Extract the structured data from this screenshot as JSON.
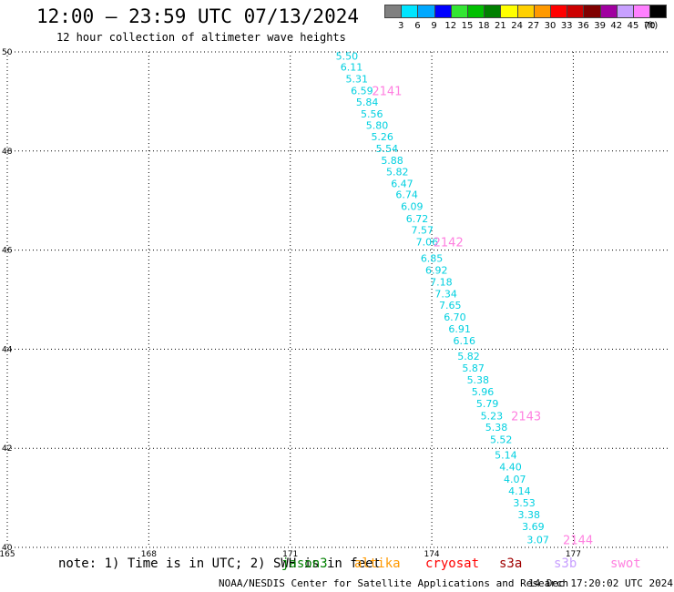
{
  "header": {
    "title": "12:00 – 23:59 UTC 07/13/2024",
    "subtitle": "12 hour collection of altimeter wave heights"
  },
  "colorbar": {
    "unit": "(ft)",
    "bins": [
      {
        "label": "3",
        "color": "#808080"
      },
      {
        "label": "6",
        "color": "#00e5ff"
      },
      {
        "label": "9",
        "color": "#00a8ff"
      },
      {
        "label": "12",
        "color": "#0000ff"
      },
      {
        "label": "15",
        "color": "#33e633"
      },
      {
        "label": "18",
        "color": "#00c000"
      },
      {
        "label": "21",
        "color": "#008000"
      },
      {
        "label": "24",
        "color": "#ffff00"
      },
      {
        "label": "27",
        "color": "#ffd000"
      },
      {
        "label": "30",
        "color": "#ff9900"
      },
      {
        "label": "33",
        "color": "#ff0000"
      },
      {
        "label": "36",
        "color": "#cc0000"
      },
      {
        "label": "39",
        "color": "#800000"
      },
      {
        "label": "42",
        "color": "#a000a0"
      },
      {
        "label": "45",
        "color": "#c8a0ff"
      },
      {
        "label": "70",
        "color": "#ff80ff"
      },
      {
        "label": "",
        "color": "#000000"
      }
    ]
  },
  "chart_data": {
    "type": "scatter",
    "xlim": [
      165,
      179
    ],
    "ylim": [
      40,
      50
    ],
    "x_ticks": [
      165,
      168,
      171,
      174,
      177
    ],
    "y_ticks": [
      40,
      42,
      44,
      46,
      48,
      50
    ],
    "grid": true,
    "point_color": "#00d0e0",
    "orbit_label_color": "#ff80e0",
    "points": [
      {
        "x": 172.2,
        "y": 49.92,
        "label": "5.50"
      },
      {
        "x": 172.3,
        "y": 49.7,
        "label": "6.11"
      },
      {
        "x": 172.41,
        "y": 49.46,
        "label": "5.31"
      },
      {
        "x": 172.52,
        "y": 49.22,
        "label": "6.59"
      },
      {
        "x": 172.63,
        "y": 48.99,
        "label": "5.84"
      },
      {
        "x": 172.73,
        "y": 48.75,
        "label": "5.56"
      },
      {
        "x": 172.84,
        "y": 48.52,
        "label": "5.80"
      },
      {
        "x": 172.95,
        "y": 48.29,
        "label": "5.26"
      },
      {
        "x": 173.05,
        "y": 48.05,
        "label": "5.54"
      },
      {
        "x": 173.16,
        "y": 47.81,
        "label": "5.88"
      },
      {
        "x": 173.27,
        "y": 47.58,
        "label": "5.82"
      },
      {
        "x": 173.37,
        "y": 47.34,
        "label": "6.47"
      },
      {
        "x": 173.47,
        "y": 47.12,
        "label": "6.74"
      },
      {
        "x": 173.58,
        "y": 46.88,
        "label": "6.09"
      },
      {
        "x": 173.69,
        "y": 46.64,
        "label": "6.72"
      },
      {
        "x": 173.8,
        "y": 46.41,
        "label": "7.57"
      },
      {
        "x": 173.9,
        "y": 46.17,
        "label": "7.06"
      },
      {
        "x": 174.0,
        "y": 45.84,
        "label": "6.85"
      },
      {
        "x": 174.1,
        "y": 45.6,
        "label": "6.92"
      },
      {
        "x": 174.2,
        "y": 45.36,
        "label": "7.18"
      },
      {
        "x": 174.3,
        "y": 45.12,
        "label": "7.34"
      },
      {
        "x": 174.39,
        "y": 44.89,
        "label": "7.65"
      },
      {
        "x": 174.49,
        "y": 44.65,
        "label": "6.70"
      },
      {
        "x": 174.59,
        "y": 44.41,
        "label": "6.91"
      },
      {
        "x": 174.69,
        "y": 44.17,
        "label": "6.16"
      },
      {
        "x": 174.78,
        "y": 43.86,
        "label": "5.82"
      },
      {
        "x": 174.88,
        "y": 43.62,
        "label": "5.87"
      },
      {
        "x": 174.98,
        "y": 43.38,
        "label": "5.38"
      },
      {
        "x": 175.08,
        "y": 43.14,
        "label": "5.96"
      },
      {
        "x": 175.18,
        "y": 42.9,
        "label": "5.79"
      },
      {
        "x": 175.27,
        "y": 42.66,
        "label": "5.23"
      },
      {
        "x": 175.37,
        "y": 42.43,
        "label": "5.38"
      },
      {
        "x": 175.47,
        "y": 42.18,
        "label": "5.52"
      },
      {
        "x": 175.57,
        "y": 41.87,
        "label": "5.14"
      },
      {
        "x": 175.67,
        "y": 41.63,
        "label": "4.40"
      },
      {
        "x": 175.76,
        "y": 41.38,
        "label": "4.07"
      },
      {
        "x": 175.86,
        "y": 41.14,
        "label": "4.14"
      },
      {
        "x": 175.96,
        "y": 40.9,
        "label": "3.53"
      },
      {
        "x": 176.06,
        "y": 40.66,
        "label": "3.38"
      },
      {
        "x": 176.15,
        "y": 40.42,
        "label": "3.69"
      },
      {
        "x": 176.25,
        "y": 40.16,
        "label": "3.07"
      }
    ],
    "orbit_labels": [
      {
        "x": 173.05,
        "y": 49.22,
        "label": "2141"
      },
      {
        "x": 174.35,
        "y": 46.17,
        "label": "2142"
      },
      {
        "x": 176.0,
        "y": 42.66,
        "label": "2143"
      },
      {
        "x": 177.1,
        "y": 40.16,
        "label": "2144"
      }
    ]
  },
  "footer": {
    "note": "note: 1) Time is in UTC; 2) SWH is in feet",
    "missions": [
      {
        "name": "jason3",
        "color": "#008000"
      },
      {
        "name": "altika",
        "color": "#ff9900"
      },
      {
        "name": "cryosat",
        "color": "#ff0000"
      },
      {
        "name": "s3a",
        "color": "#a00000"
      },
      {
        "name": "s3b",
        "color": "#c8a0ff"
      },
      {
        "name": "swot",
        "color": "#ff80e0"
      }
    ],
    "credit": "NOAA/NESDIS Center for Satellite Applications and Research",
    "timestamp": "14 Dec 17:20:02 UTC 2024"
  }
}
